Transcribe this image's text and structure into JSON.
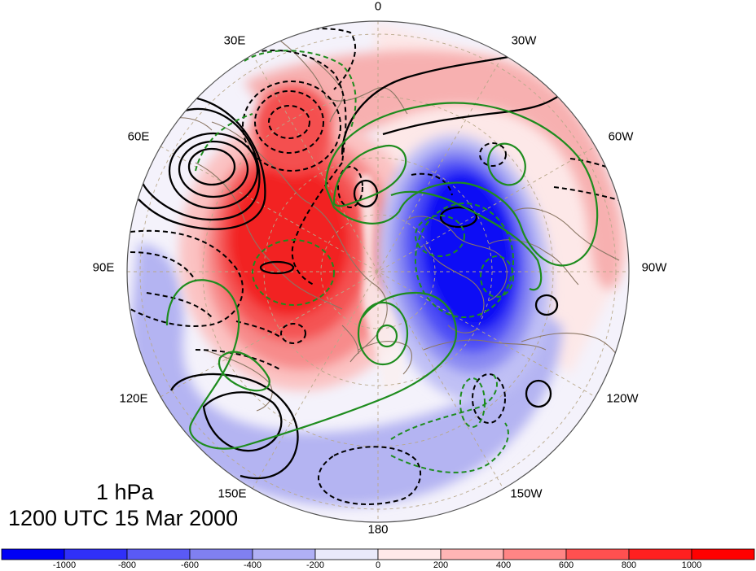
{
  "map": {
    "level_label": "1 hPa",
    "time_label": "1200 UTC 15 Mar 2000",
    "projection": "north polar stereographic",
    "longitude_labels": [
      "0",
      "30W",
      "60W",
      "90W",
      "120W",
      "150W",
      "180",
      "150E",
      "120E",
      "90E",
      "60E",
      "30E"
    ],
    "colors": {
      "positive_max": "#ff0000",
      "negative_max": "#0000ff",
      "contour_solid": "#000000",
      "contour_green": "#1e8c1e",
      "coastline": "#8b7765",
      "grid": "#b8a88a"
    }
  },
  "colorbar": {
    "tick_labels": [
      "-1000",
      "-800",
      "-600",
      "-400",
      "-200",
      "0",
      "200",
      "400",
      "600",
      "800",
      "1000"
    ],
    "colors": [
      "#0000f5",
      "#3030f8",
      "#5a5af5",
      "#8080f0",
      "#b0b0f5",
      "#eaeafa",
      "#ffeaea",
      "#ffb5b5",
      "#ff8585",
      "#ff5050",
      "#ff2020",
      "#ff0000"
    ]
  }
}
